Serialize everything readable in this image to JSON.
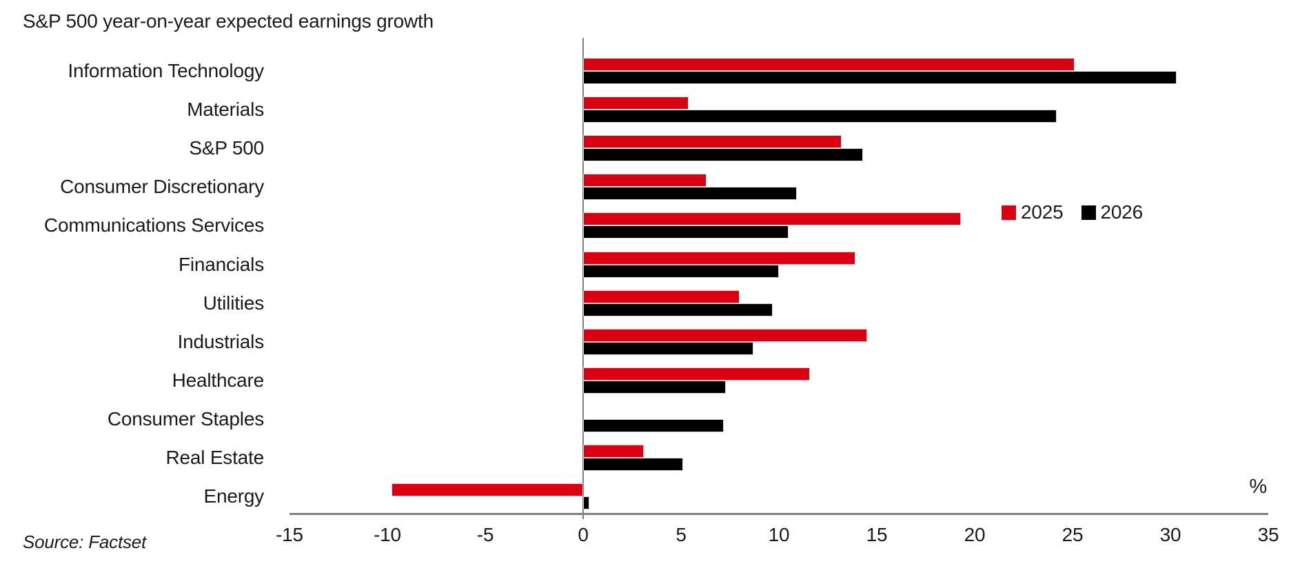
{
  "title": "S&P 500 year-on-year expected earnings growth",
  "source": "Source: Factset",
  "unit_label": "%",
  "colors": {
    "series_2025": "#db0011",
    "series_2026": "#000000",
    "axis": "#7f7f7f",
    "text": "#1a1a1a",
    "bar_outline": "#d8d8d8"
  },
  "legend": [
    {
      "label": "2025",
      "color": "#db0011"
    },
    {
      "label": "2026",
      "color": "#000000"
    }
  ],
  "chart_data": {
    "type": "bar",
    "orientation": "horizontal",
    "title": "S&P 500 year-on-year expected earnings growth",
    "xlabel": "%",
    "ylabel": "",
    "xlim": [
      -15,
      35
    ],
    "xticks": [
      -15,
      -10,
      -5,
      0,
      5,
      10,
      15,
      20,
      25,
      30,
      35
    ],
    "grid": false,
    "legend_position": "right-middle",
    "categories": [
      "Information Technology",
      "Materials",
      "S&P 500",
      "Consumer Discretionary",
      "Communications Services",
      "Financials",
      "Utilities",
      "Industrials",
      "Healthcare",
      "Consumer Staples",
      "Real Estate",
      "Energy"
    ],
    "series": [
      {
        "name": "2025",
        "color": "#db0011",
        "values": [
          25.1,
          5.4,
          13.2,
          6.3,
          19.3,
          13.9,
          8.0,
          14.5,
          11.6,
          0.0,
          3.1,
          -9.8
        ]
      },
      {
        "name": "2026",
        "color": "#000000",
        "values": [
          30.3,
          24.2,
          14.3,
          10.9,
          10.5,
          10.0,
          9.7,
          8.7,
          7.3,
          7.2,
          5.1,
          0.3
        ]
      }
    ]
  }
}
